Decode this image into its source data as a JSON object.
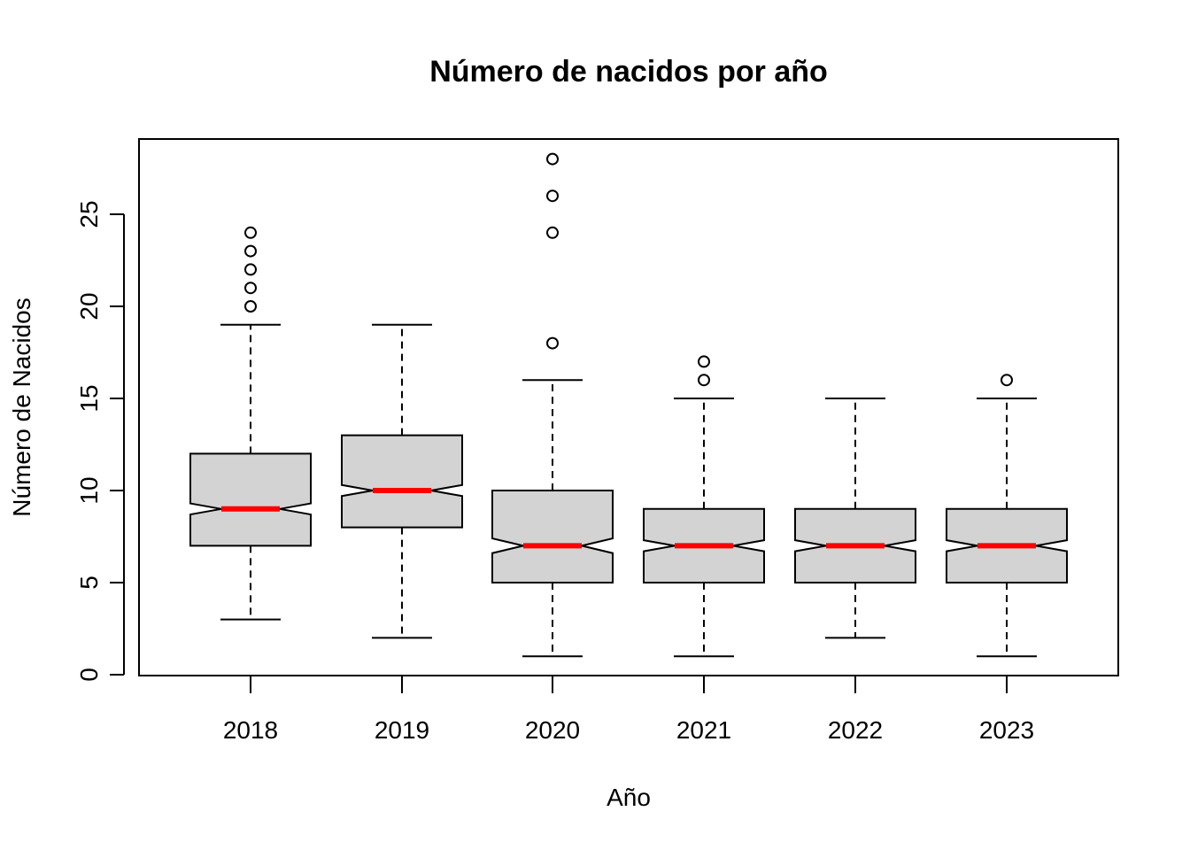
{
  "chart_data": {
    "type": "boxplot",
    "title": "Número de nacidos por año",
    "xlabel": "Año",
    "ylabel": "Número de Nacidos",
    "categories": [
      "2018",
      "2019",
      "2020",
      "2021",
      "2022",
      "2023"
    ],
    "boxes": [
      {
        "lower_whisker": 3,
        "q1": 7,
        "median": 9,
        "q3": 12,
        "upper_whisker": 19,
        "notch_low": 8.7,
        "notch_high": 9.3,
        "outliers": [
          20,
          21,
          22,
          23,
          24
        ]
      },
      {
        "lower_whisker": 2,
        "q1": 8,
        "median": 10,
        "q3": 13,
        "upper_whisker": 19,
        "notch_low": 9.7,
        "notch_high": 10.3,
        "outliers": []
      },
      {
        "lower_whisker": 1,
        "q1": 5,
        "median": 7,
        "q3": 10,
        "upper_whisker": 16,
        "notch_low": 6.6,
        "notch_high": 7.4,
        "outliers": [
          18,
          24,
          26,
          28
        ]
      },
      {
        "lower_whisker": 1,
        "q1": 5,
        "median": 7,
        "q3": 9,
        "upper_whisker": 15,
        "notch_low": 6.7,
        "notch_high": 7.3,
        "outliers": [
          16,
          17
        ]
      },
      {
        "lower_whisker": 2,
        "q1": 5,
        "median": 7,
        "q3": 9,
        "upper_whisker": 15,
        "notch_low": 6.7,
        "notch_high": 7.3,
        "outliers": []
      },
      {
        "lower_whisker": 1,
        "q1": 5,
        "median": 7,
        "q3": 9,
        "upper_whisker": 15,
        "notch_low": 6.7,
        "notch_high": 7.3,
        "outliers": [
          16
        ]
      }
    ],
    "yticks": [
      0,
      5,
      10,
      15,
      20,
      25
    ],
    "ylim": [
      0,
      29.2
    ],
    "grid": false,
    "box_color": "#d3d3d3",
    "median_color": "#ff0000",
    "line_color": "#000000"
  }
}
